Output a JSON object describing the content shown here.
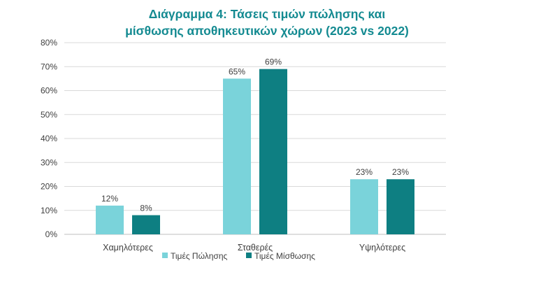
{
  "chart_data": {
    "type": "bar",
    "title_lines": [
      "Διάγραμμα 4: Τάσεις τιμών πώλησης και",
      "μίσθωσης αποθηκευτικών χώρων (2023 vs 2022)"
    ],
    "categories": [
      "Χαμηλότερες",
      "Σταθερές",
      "Υψηλότερες"
    ],
    "series": [
      {
        "name": "Τιμές Πώλησης",
        "values": [
          12,
          65,
          23
        ],
        "labels": [
          "12%",
          "65%",
          "23%"
        ],
        "color": "#7ad3da"
      },
      {
        "name": "Τιμές Μίσθωσης",
        "values": [
          8,
          69,
          23
        ],
        "labels": [
          "8%",
          "69%",
          "23%"
        ],
        "color": "#0e7f82"
      }
    ],
    "ylim": [
      0,
      80
    ],
    "yticks": [
      "0%",
      "10%",
      "20%",
      "30%",
      "40%",
      "50%",
      "60%",
      "70%",
      "80%"
    ],
    "grid": true,
    "legend_position": "bottom",
    "title_color": "#138a91"
  }
}
